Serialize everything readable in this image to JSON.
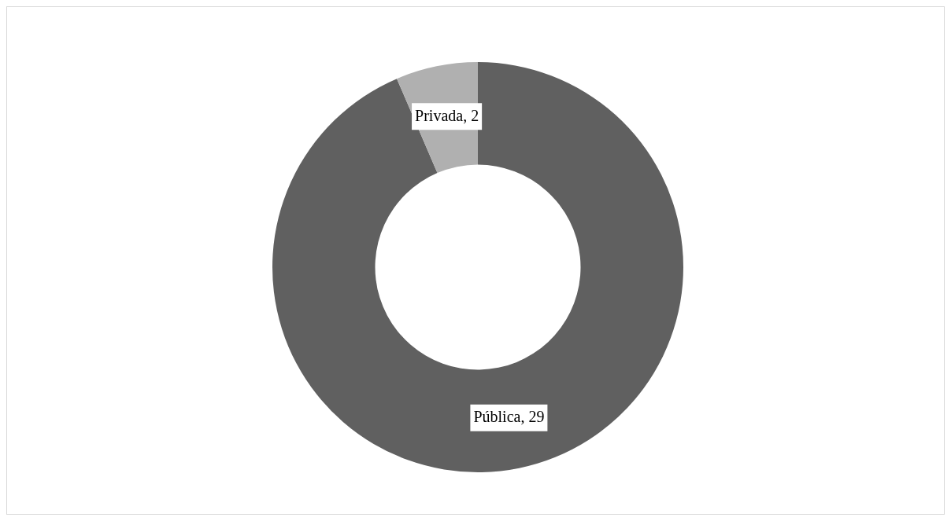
{
  "chart_data": {
    "type": "donut",
    "categories": [
      "Pública",
      "Privada"
    ],
    "values": [
      29,
      2
    ],
    "colors": [
      "#606060",
      "#b0b0b0"
    ],
    "value_labels": [
      ", 29",
      ", 2"
    ],
    "legend": false
  }
}
